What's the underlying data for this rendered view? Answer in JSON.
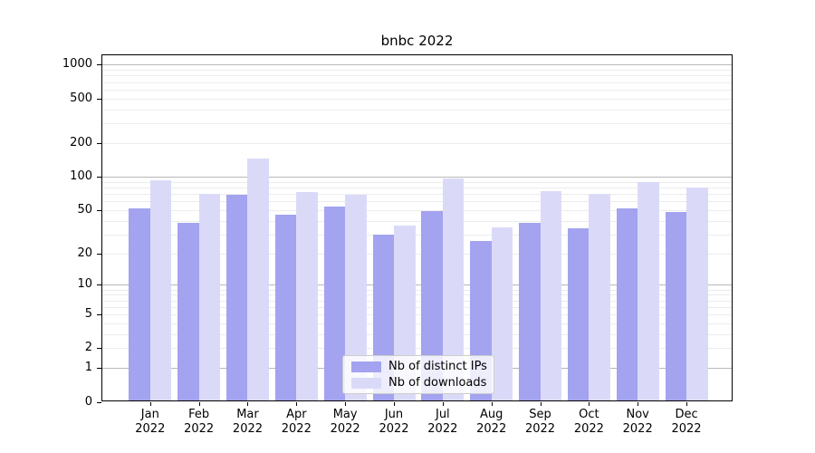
{
  "title": "bnbc 2022",
  "chart_data": {
    "type": "bar",
    "title": "bnbc 2022",
    "x_axis": {
      "categories": [
        "Jan",
        "Feb",
        "Mar",
        "Apr",
        "May",
        "Jun",
        "Jul",
        "Aug",
        "Sep",
        "Oct",
        "Nov",
        "Dec"
      ],
      "year_label": "2022"
    },
    "y_axis": {
      "scale": "log1p",
      "tick_values": [
        1000,
        500,
        200,
        100,
        50,
        20,
        10,
        5,
        2,
        1,
        0
      ],
      "tick_labels": [
        "1000",
        "500",
        "200",
        "100",
        "50",
        "20",
        "10",
        "5",
        "2",
        "1",
        "0"
      ],
      "range": [
        0,
        1240
      ],
      "major_grid_values": [
        1,
        10,
        100,
        1000
      ]
    },
    "series": [
      {
        "name": "Nb of distinct IPs",
        "color": "#a3a3f0",
        "values": [
          52,
          38,
          68,
          45,
          54,
          30,
          49,
          26,
          38,
          34,
          52,
          48
        ]
      },
      {
        "name": "Nb of downloads",
        "color": "#dadaf8",
        "values": [
          92,
          70,
          145,
          72,
          68,
          36,
          96,
          35,
          74,
          70,
          89,
          80
        ]
      }
    ],
    "legend": {
      "position": "lower center",
      "entries": [
        "Nb of distinct IPs",
        "Nb of downloads"
      ]
    },
    "grid": {
      "enabled": true,
      "major_color": "#b8b8b8",
      "minor_color": "#ececec"
    },
    "colors": {
      "background": "#ffffff",
      "axis": "#000000",
      "text": "#000000"
    }
  }
}
